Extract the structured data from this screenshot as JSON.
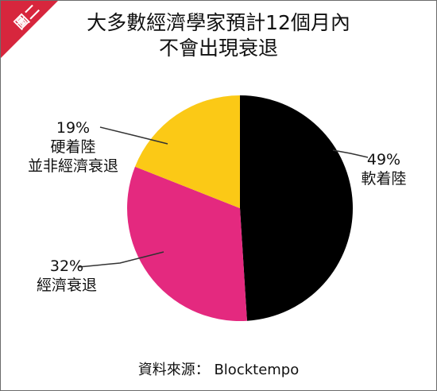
{
  "badge": {
    "label": "圖二",
    "color": "#d7263d"
  },
  "chart_data": {
    "type": "pie",
    "title_lines": [
      "大多數經濟學家預計12個月內",
      "不會出現衰退"
    ],
    "slices": [
      {
        "percent_label": "49%",
        "name_lines": [
          "軟着陸"
        ],
        "value": 49,
        "color": "#000000"
      },
      {
        "percent_label": "32%",
        "name_lines": [
          "經濟衰退"
        ],
        "value": 32,
        "color": "#e4297f"
      },
      {
        "percent_label": "19%",
        "name_lines": [
          "硬着陸",
          "並非經濟衰退"
        ],
        "value": 19,
        "color": "#fbc916"
      }
    ]
  },
  "source": "資料來源： Blocktempo"
}
